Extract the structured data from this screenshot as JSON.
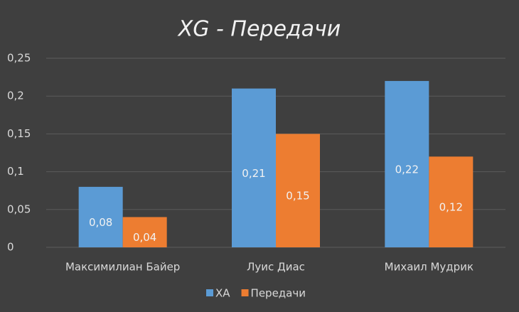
{
  "chart_data": {
    "type": "bar",
    "title": "XG - Передачи",
    "categories": [
      "Максимилиан Байер",
      "Луис Диас",
      "Михаил Мудрик"
    ],
    "series": [
      {
        "name": "XA",
        "color": "#5b9bd5",
        "values": [
          0.08,
          0.21,
          0.22
        ],
        "value_labels": [
          "0,08",
          "0,21",
          "0,22"
        ]
      },
      {
        "name": "Передачи",
        "color": "#ed7d31",
        "values": [
          0.04,
          0.15,
          0.12
        ],
        "value_labels": [
          "0,04",
          "0,15",
          "0,12"
        ]
      }
    ],
    "ylim": [
      0,
      0.25
    ],
    "yticks": [
      0,
      {
        "value": 0.05,
        "label": "0,05"
      },
      {
        "value": 0.1,
        "label": "0,1"
      },
      {
        "value": 0.15,
        "label": "0,15"
      },
      {
        "value": 0.2,
        "label": "0,2"
      },
      {
        "value": 0.25,
        "label": "0,25"
      }
    ],
    "grid": true,
    "legend": "bottom"
  }
}
